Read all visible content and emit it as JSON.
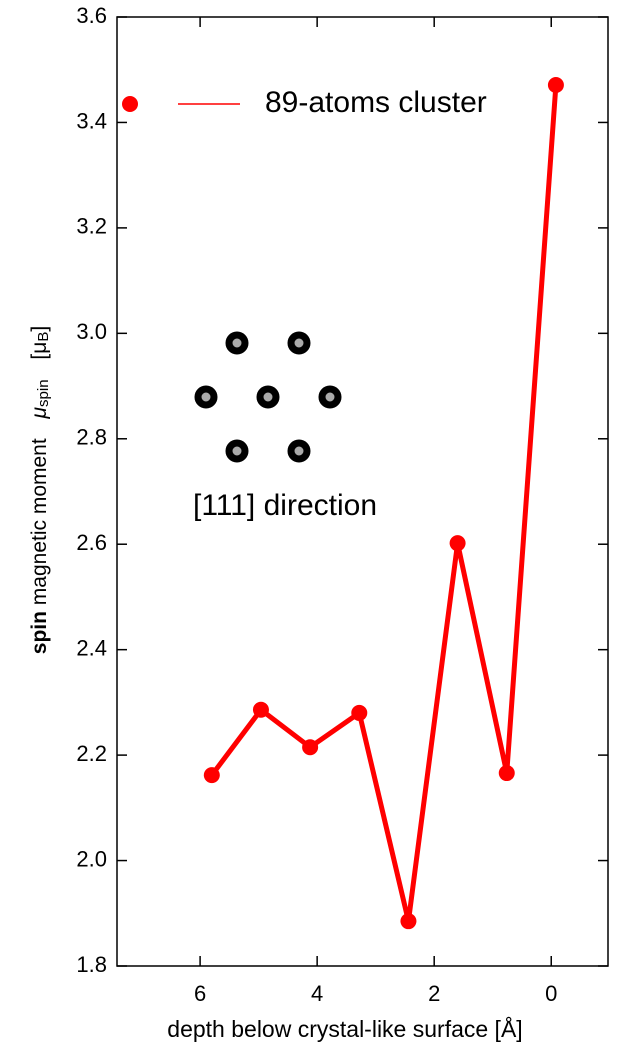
{
  "chart_data": {
    "type": "line",
    "x_label": "depth below crystal-like surface  [Å]",
    "y_label": {
      "bold": "spin",
      "rest": "magnetic moment",
      "symbol": "μ",
      "symbol_sub": "spin",
      "unit": "[μ",
      "unit_sub": "B",
      "unit_close": "]"
    },
    "annotation": "[111] direction",
    "x": [
      5.8,
      4.96,
      4.12,
      3.28,
      2.44,
      1.6,
      0.76,
      -0.08
    ],
    "series": [
      {
        "name": "89-atoms cluster",
        "color": "#ff0000",
        "values": [
          2.162,
          2.286,
          2.215,
          2.28,
          1.885,
          2.602,
          2.166,
          3.471
        ]
      }
    ],
    "xlim": [
      7.42,
      -0.97
    ],
    "xticks": [
      6,
      4,
      2,
      0
    ],
    "ylim": [
      1.8,
      3.6
    ],
    "yticks": [
      {
        "value": 1.8,
        "label": "1.8"
      },
      {
        "value": 2.0,
        "label": "2.0"
      },
      {
        "value": 2.2,
        "label": "2.2"
      },
      {
        "value": 2.4,
        "label": "2.4"
      },
      {
        "value": 2.6,
        "label": "2.6"
      },
      {
        "value": 2.8,
        "label": "2.8"
      },
      {
        "value": 3.0,
        "label": "3.0"
      },
      {
        "value": 3.2,
        "label": "3.2"
      },
      {
        "value": 3.4,
        "label": "3.4"
      },
      {
        "value": 3.6,
        "label": "3.6"
      }
    ],
    "legend_position": "upper-left"
  }
}
